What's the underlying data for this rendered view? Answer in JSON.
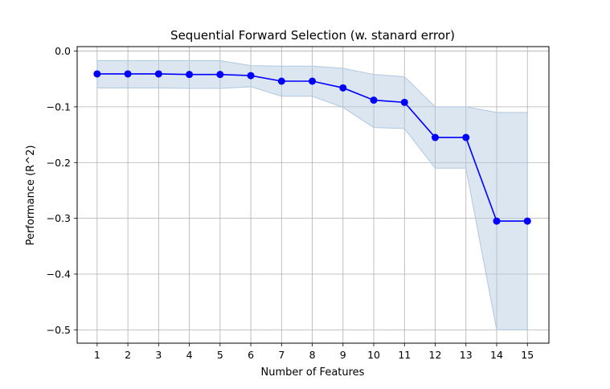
{
  "chart_data": {
    "type": "line",
    "title": "Sequential Forward Selection (w. stanard error)",
    "xlabel": "Number of Features",
    "ylabel": "Performance (R^2)",
    "x": [
      1,
      2,
      3,
      4,
      5,
      6,
      7,
      8,
      9,
      10,
      11,
      12,
      13,
      14,
      15
    ],
    "xlim": [
      0.35,
      15.7
    ],
    "ylim": [
      -0.524,
      0.008
    ],
    "xticks": [
      "1",
      "2",
      "3",
      "4",
      "5",
      "6",
      "7",
      "8",
      "9",
      "10",
      "11",
      "12",
      "13",
      "14",
      "15"
    ],
    "yticks": [
      0.0,
      -0.1,
      -0.2,
      -0.3,
      -0.4,
      -0.5
    ],
    "ytick_labels": [
      "0.0",
      "−0.1",
      "−0.2",
      "−0.3",
      "−0.4",
      "−0.5"
    ],
    "grid": true,
    "series": [
      {
        "values": [
          -0.041,
          -0.041,
          -0.041,
          -0.042,
          -0.042,
          -0.044,
          -0.054,
          -0.054,
          -0.066,
          -0.088,
          -0.092,
          -0.155,
          -0.155,
          -0.305,
          -0.305
        ],
        "lower": [
          -0.066,
          -0.066,
          -0.066,
          -0.067,
          -0.067,
          -0.064,
          -0.081,
          -0.081,
          -0.101,
          -0.137,
          -0.139,
          -0.21,
          -0.21,
          -0.5,
          -0.5
        ],
        "upper": [
          -0.017,
          -0.017,
          -0.017,
          -0.017,
          -0.017,
          -0.026,
          -0.027,
          -0.027,
          -0.031,
          -0.042,
          -0.046,
          -0.1,
          -0.1,
          -0.11,
          -0.11
        ],
        "color": "#0000ff",
        "band_color": "#b0c8df"
      }
    ]
  }
}
